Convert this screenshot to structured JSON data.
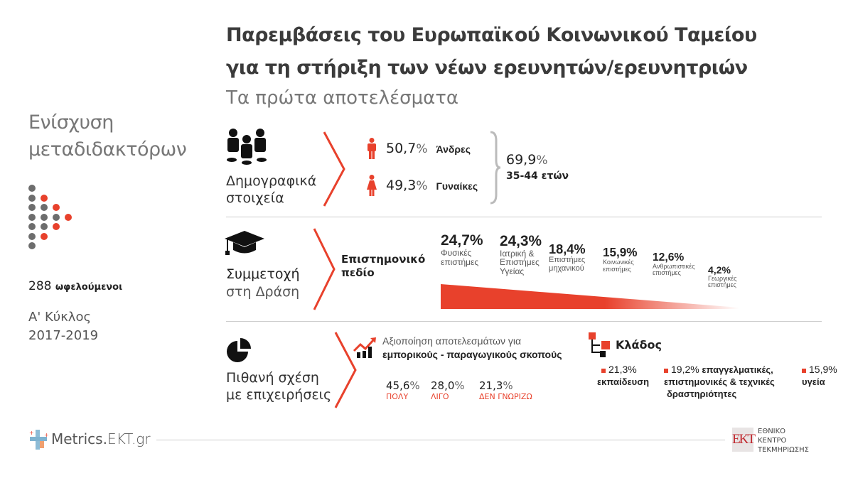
{
  "title": {
    "line1": "Παρεμβάσεις του Ευρωπαϊκού Κοινωνικού Ταμείου",
    "line2": "για τη στήριξη των νέων ερευνητών/ερευνητριών",
    "subtitle": "Τα πρώτα αποτελέσματα"
  },
  "sidebar": {
    "heading1": "Ενίσχυση",
    "heading2": "μεταδιδακτόρων",
    "beneficiaries_count": "288",
    "beneficiaries_label": "ωφελούμενοι",
    "cycle": "Α' Κύκλος",
    "period": "2017-2019"
  },
  "demographics": {
    "label1": "Δημογραφικά",
    "label2": "στοιχεία",
    "men_pct": "50,7",
    "men_label": "Άνδρες",
    "women_pct": "49,3",
    "women_label": "Γυναίκες",
    "age_pct": "69,9",
    "age_label": "35-44 ετών",
    "percent_sign": "%"
  },
  "participation": {
    "label1": "Συμμετοχή",
    "label2": "στη Δράση",
    "field_label1": "Επιστημονικό",
    "field_label2": "πεδίο",
    "fields": [
      {
        "pct": "24,7%",
        "name1": "Φυσικές",
        "name2": "επιστήμες",
        "name3": "",
        "value": 24.7
      },
      {
        "pct": "24,3%",
        "name1": "Ιατρική &",
        "name2": "Επιστήμες",
        "name3": "Υγείας",
        "value": 24.3
      },
      {
        "pct": "18,4%",
        "name1": "Επιστήμες",
        "name2": "μηχανικού",
        "name3": "",
        "value": 18.4
      },
      {
        "pct": "15,9%",
        "name1": "Κοινωνικές",
        "name2": "επιστήμες",
        "name3": "",
        "value": 15.9
      },
      {
        "pct": "12,6%",
        "name1": "Ανθρωπιστικές",
        "name2": "επιστήμες",
        "name3": "",
        "value": 12.6
      },
      {
        "pct": "4,2%",
        "name1": "Γεωργικές",
        "name2": "επιστήμες",
        "name3": "",
        "value": 4.2
      }
    ]
  },
  "business": {
    "label1": "Πιθανή σχέση",
    "label2": "με επιχειρήσεις",
    "exploit_line1": "Αξιοποίηση αποτελεσμάτων για",
    "exploit_line2": "εμπορικούς - παραγωγικούς σκοπούς",
    "answers": [
      {
        "pct": "45,6",
        "label": "ΠΟΛΥ"
      },
      {
        "pct": "28,0",
        "label": "ΛΙΓΟ"
      },
      {
        "pct": "21,3",
        "label": "ΔΕΝ ΓΝΩΡΙΖΩ"
      }
    ],
    "sector_title": "Κλάδος",
    "sectors": [
      {
        "pct": "21,3%",
        "l1": "εκπαίδευση",
        "l2": "",
        "l3": ""
      },
      {
        "pct": "19,2%",
        "l1": "επαγγελματικές,",
        "l2": "επιστημονικές & τεχνικές",
        "l3": "δραστηριότητες"
      },
      {
        "pct": "15,9%",
        "l1": "υγεία",
        "l2": "",
        "l3": ""
      }
    ]
  },
  "footer": {
    "brand": "Metrics.",
    "brand2": "EKT.gr",
    "ekt_logo": "EKT",
    "org1": "ΕΘΝΙΚΟ",
    "org2": "ΚΕΝΤΡΟ",
    "org3": "ΤΕΚΜΗΡΙΩΣΗΣ"
  },
  "colors": {
    "accent": "#e8412c",
    "gray": "#666666",
    "dot_gray": "#6d6d6d"
  }
}
